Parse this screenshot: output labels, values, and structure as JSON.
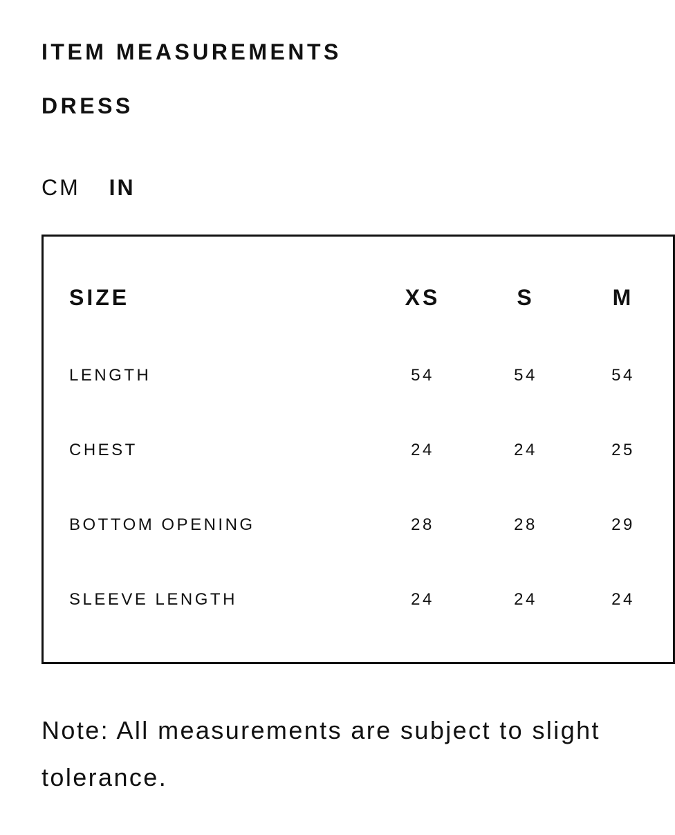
{
  "heading": "ITEM MEASUREMENTS",
  "product": "DRESS",
  "units": {
    "options": [
      "CM",
      "IN"
    ],
    "selected": "IN"
  },
  "table": {
    "header": {
      "label": "SIZE",
      "sizes": [
        "XS",
        "S",
        "M"
      ]
    },
    "rows": [
      {
        "label": "LENGTH",
        "values": [
          "54",
          "54",
          "54"
        ]
      },
      {
        "label": "CHEST",
        "values": [
          "24",
          "24",
          "25"
        ]
      },
      {
        "label": "BOTTOM OPENING",
        "values": [
          "28",
          "28",
          "29"
        ]
      },
      {
        "label": "SLEEVE LENGTH",
        "values": [
          "24",
          "24",
          "24"
        ]
      }
    ]
  },
  "note": "Note: All measurements are subject to slight tolerance."
}
